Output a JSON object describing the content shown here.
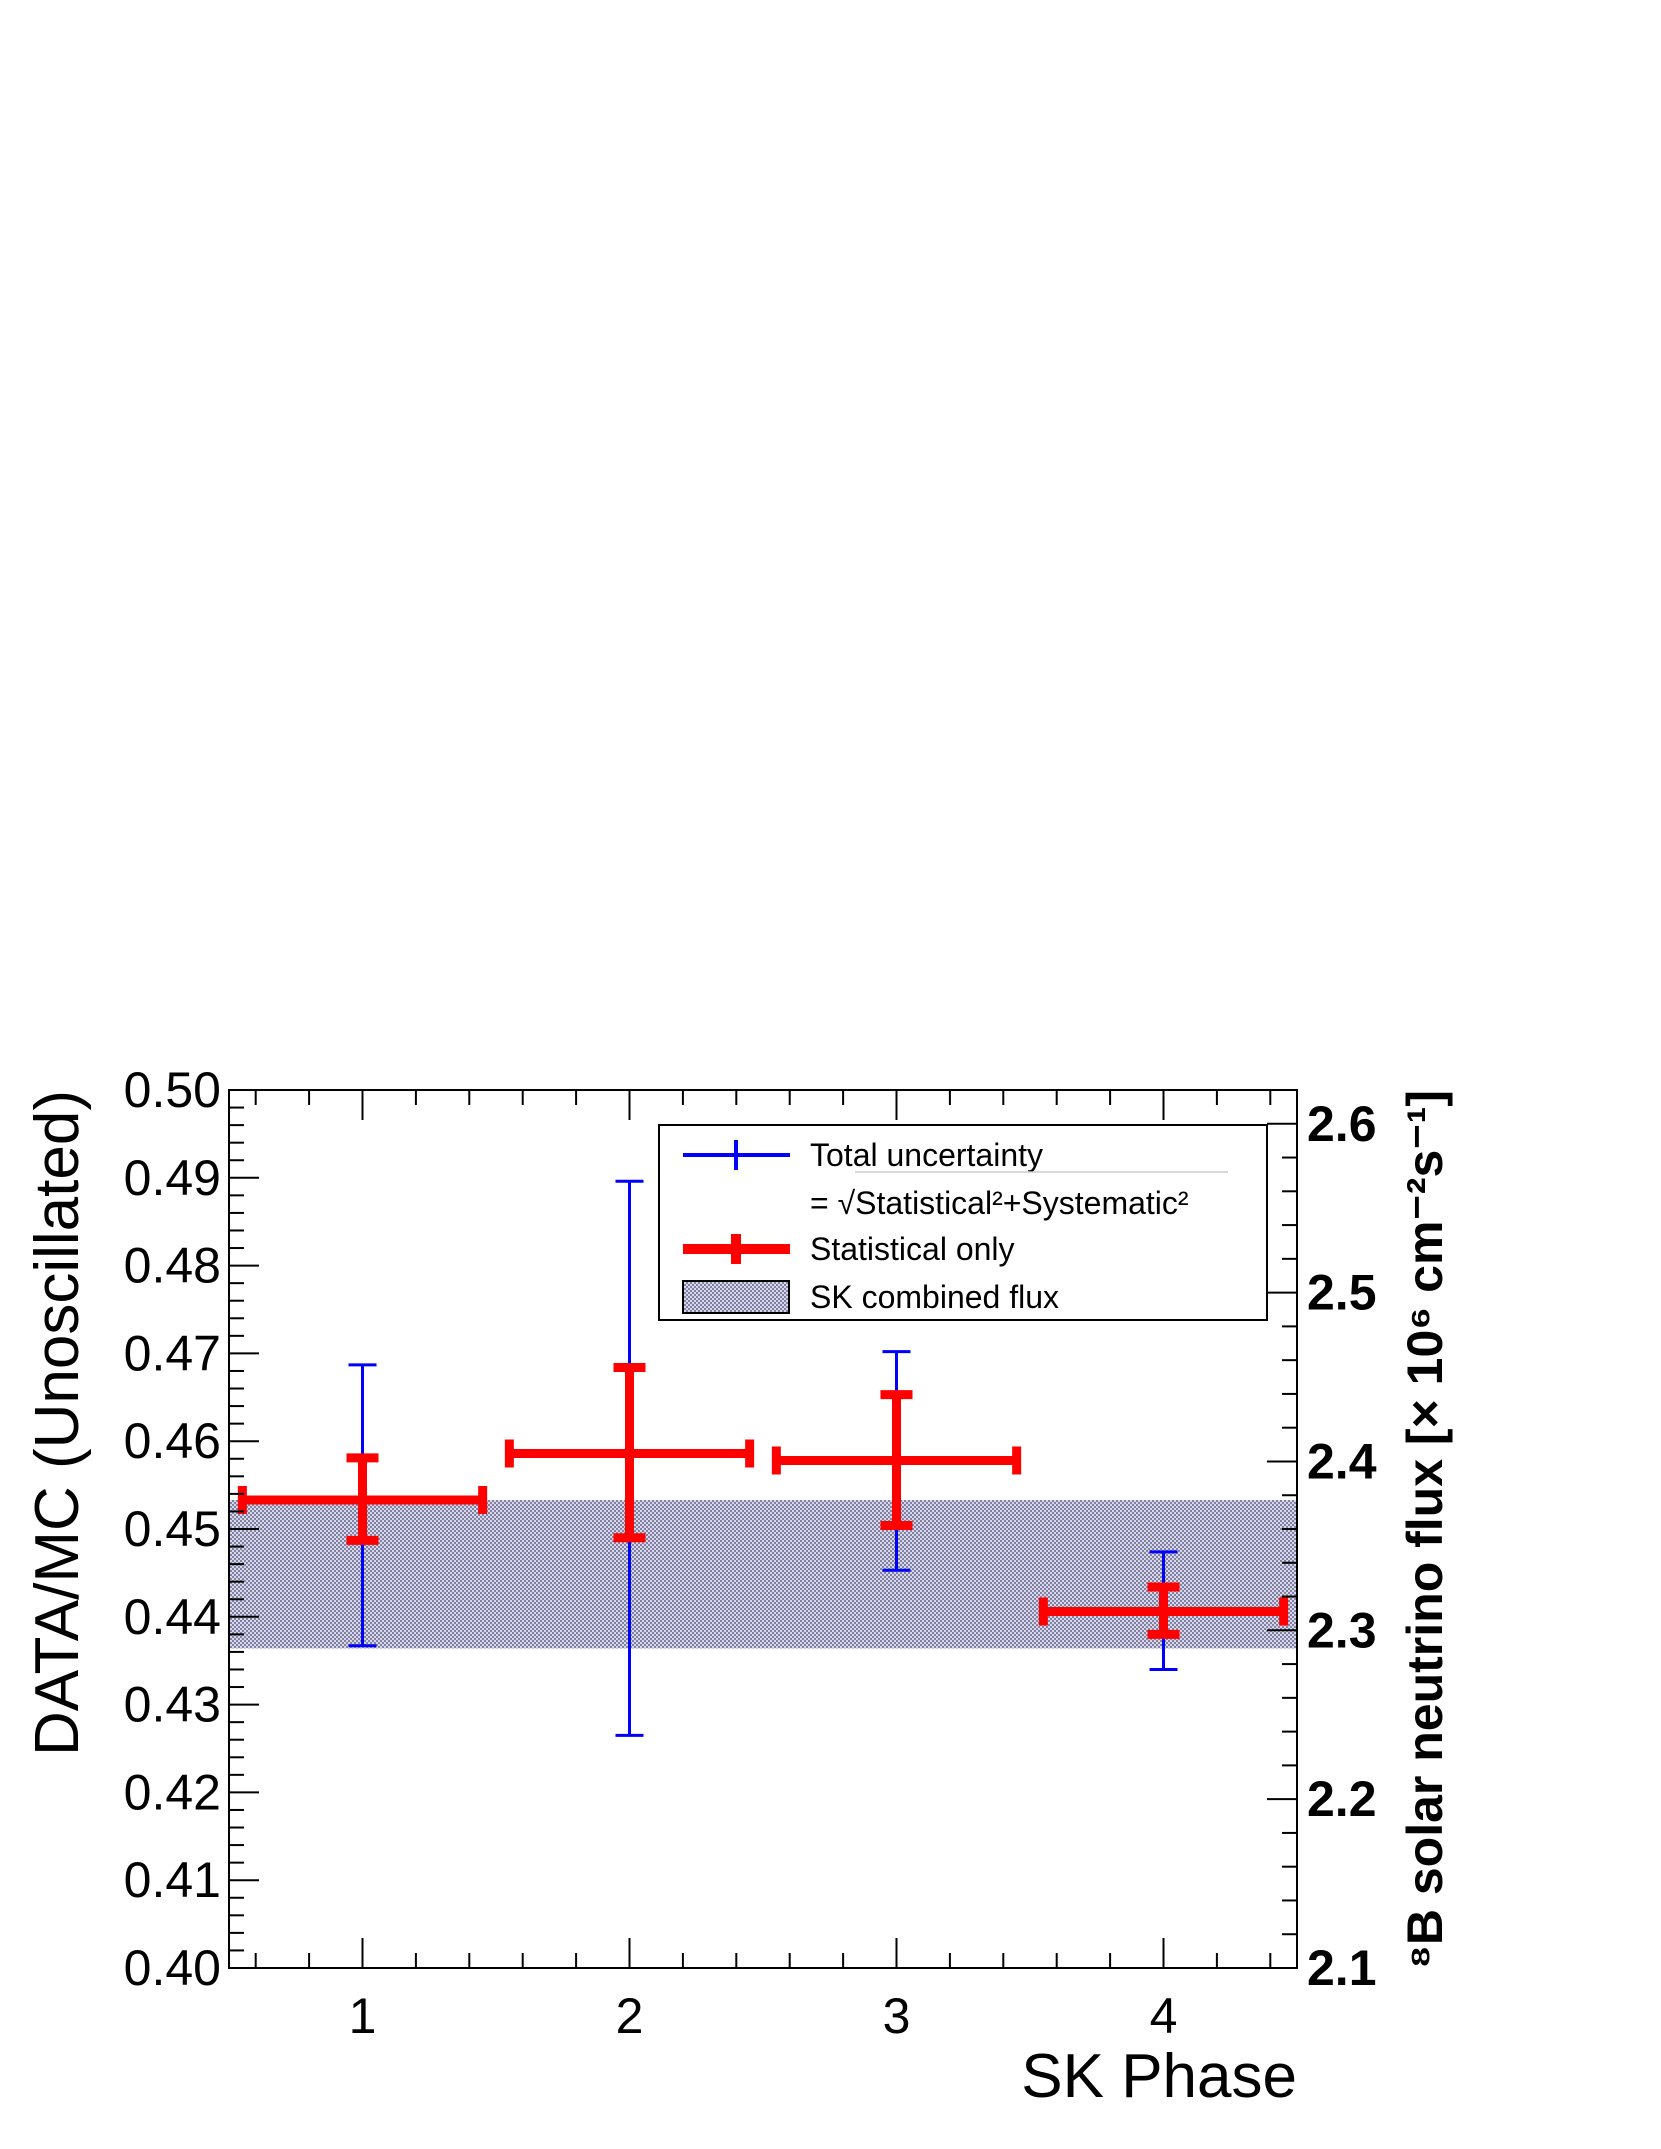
{
  "chart_data": {
    "type": "scatter",
    "xlabel": "SK Phase",
    "ylabel": "DATA/MC (Unoscillated)",
    "ylabel_right": "⁸B solar neutrino flux [× 10⁶ cm⁻²s⁻¹]",
    "xlim": [
      0.5,
      4.5
    ],
    "ylim": [
      0.4,
      0.5
    ],
    "ylim_right": [
      2.1,
      2.62
    ],
    "x_ticks": [
      "1",
      "2",
      "3",
      "4"
    ],
    "y_ticks": [
      "0.40",
      "0.41",
      "0.42",
      "0.43",
      "0.44",
      "0.45",
      "0.46",
      "0.47",
      "0.48",
      "0.49",
      "0.50"
    ],
    "y_right_ticks": [
      "2.1",
      "2.2",
      "2.3",
      "2.4",
      "2.5",
      "2.6"
    ],
    "grid": false,
    "legend_position": "top-right",
    "colors": {
      "total": "#0000ff",
      "stat": "#ff0000",
      "band": "#a0a0c0"
    },
    "legend": {
      "total": "Total uncertainty",
      "total_formula": "= √Statistical²+Systematic²",
      "stat": "Statistical only",
      "band": "SK combined flux"
    },
    "band": {
      "low": 0.4364,
      "high": 0.4533
    },
    "points": [
      {
        "x": 1,
        "xerr": 0.45,
        "y": 0.4533,
        "total_low": 0.4367,
        "total_high": 0.4687,
        "stat_low": 0.4487,
        "stat_high": 0.4581
      },
      {
        "x": 2,
        "xerr": 0.45,
        "y": 0.4586,
        "total_low": 0.4265,
        "total_high": 0.4896,
        "stat_low": 0.449,
        "stat_high": 0.4684
      },
      {
        "x": 3,
        "xerr": 0.45,
        "y": 0.4578,
        "total_low": 0.4453,
        "total_high": 0.4702,
        "stat_low": 0.4504,
        "stat_high": 0.4653
      },
      {
        "x": 4,
        "xerr": 0.45,
        "y": 0.4406,
        "total_low": 0.434,
        "total_high": 0.4474,
        "stat_low": 0.438,
        "stat_high": 0.4434
      }
    ]
  }
}
